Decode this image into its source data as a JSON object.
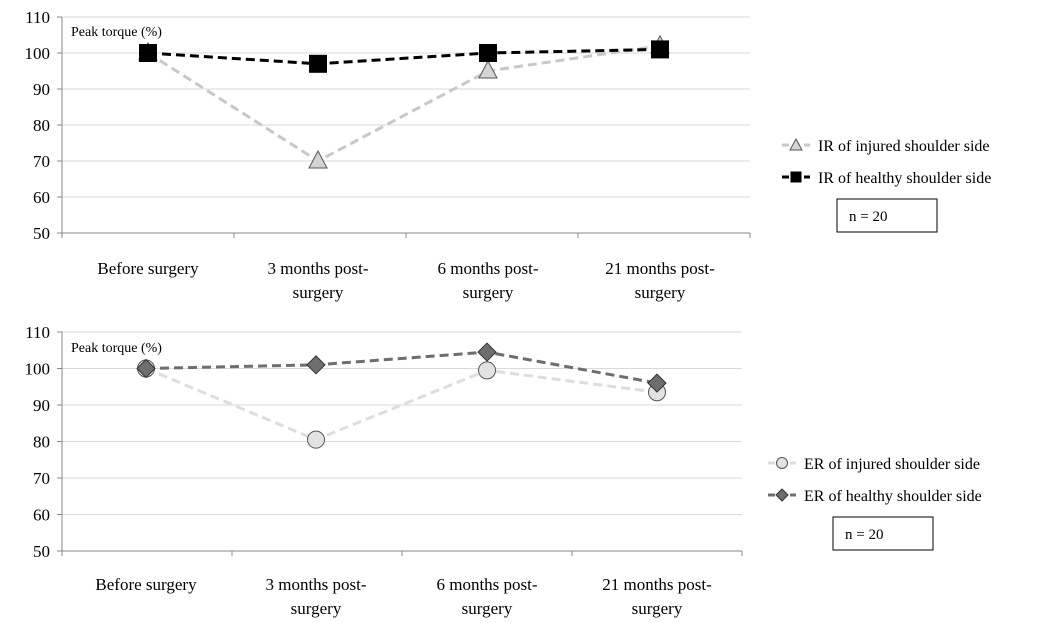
{
  "chart_data": [
    {
      "type": "line",
      "title": "",
      "ylabel": "Peak torque (%)",
      "xlabel": "",
      "ylim": [
        50,
        110
      ],
      "ytick_step": 10,
      "grid": true,
      "legend_position": "right",
      "note": "n = 20",
      "categories": [
        [
          "Before surgery"
        ],
        [
          "3 months post-",
          "surgery"
        ],
        [
          "6 months post-",
          "surgery"
        ],
        [
          "21 months post-",
          "surgery"
        ]
      ],
      "series": [
        {
          "name": "IR of injured shoulder side",
          "values": [
            100,
            70,
            95,
            102
          ],
          "color": "#c8c8c8",
          "marker": "triangle",
          "marker_fill": "#d4d4d4"
        },
        {
          "name": "IR of healthy shoulder side",
          "values": [
            100,
            97,
            100,
            101
          ],
          "color": "#000000",
          "marker": "square",
          "marker_fill": "#000000"
        }
      ]
    },
    {
      "type": "line",
      "title": "",
      "ylabel": "Peak torque (%)",
      "xlabel": "",
      "ylim": [
        50,
        110
      ],
      "ytick_step": 10,
      "grid": true,
      "legend_position": "right",
      "note": "n = 20",
      "categories": [
        [
          "Before surgery"
        ],
        [
          "3 months post-",
          "surgery"
        ],
        [
          "6 months post-",
          "surgery"
        ],
        [
          "21 months post-",
          "surgery"
        ]
      ],
      "series": [
        {
          "name": "ER of injured shoulder side",
          "values": [
            100,
            80.5,
            99.5,
            93.5
          ],
          "color": "#dddddd",
          "marker": "circle",
          "marker_fill": "#e2e2e2"
        },
        {
          "name": "ER of healthy shoulder side",
          "values": [
            100,
            101,
            104.5,
            96
          ],
          "color": "#6e6e6e",
          "marker": "diamond",
          "marker_fill": "#6e6e6e"
        }
      ]
    }
  ]
}
